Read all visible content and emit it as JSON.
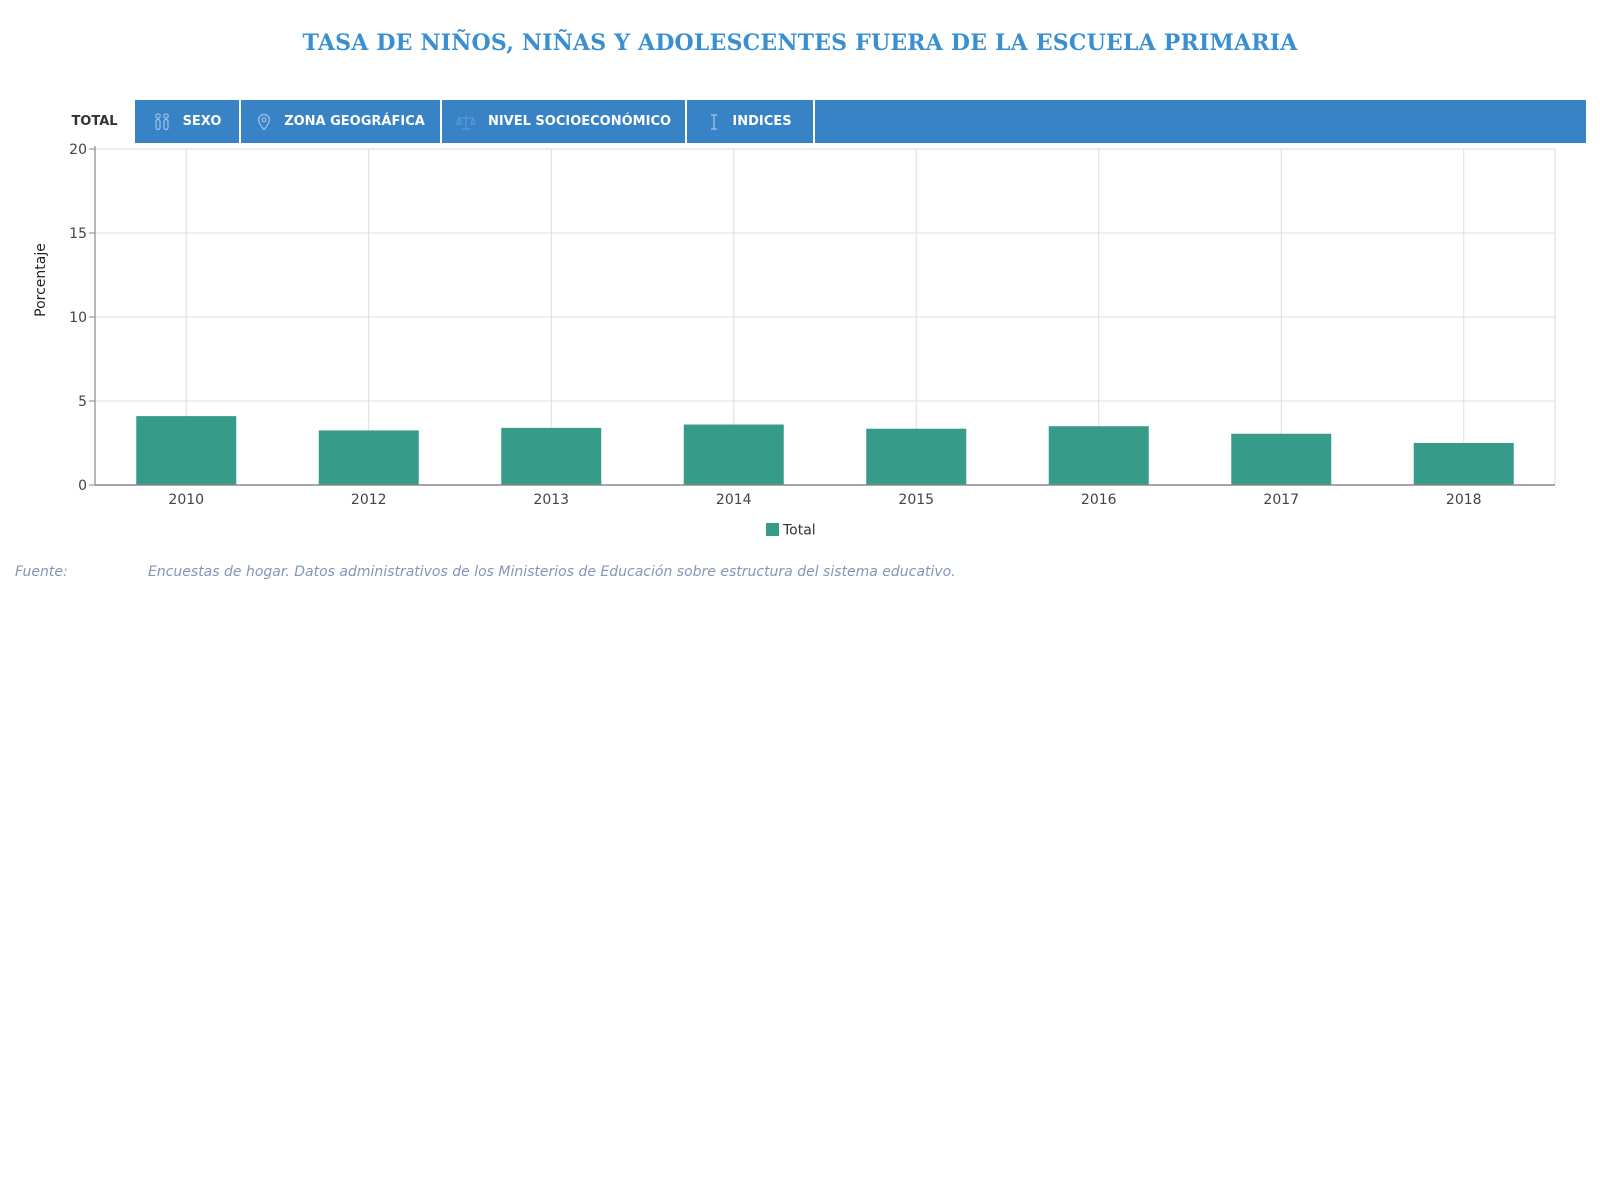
{
  "page": {
    "title": "TASA DE NIÑOS, NIÑAS Y ADOLESCENTES FUERA DE LA ESCUELA PRIMARIA"
  },
  "tabs": [
    {
      "label": "TOTAL",
      "icon": "none",
      "active": true
    },
    {
      "label": "SEXO",
      "icon": "gender-icon",
      "active": false
    },
    {
      "label": "ZONA GEOGRÁFICA",
      "icon": "map-pin-icon",
      "active": false
    },
    {
      "label": "NIVEL SOCIOECONÓMICO",
      "icon": "scale-icon",
      "active": false
    },
    {
      "label": "INDICES",
      "icon": "index-icon",
      "active": false
    }
  ],
  "source": {
    "label": "Fuente:",
    "text": "Encuestas de hogar. Datos administrativos de los Ministerios de Educación sobre estructura del sistema educativo."
  },
  "colors": {
    "title": "#3a8fd0",
    "tab_bar": "#3783c6",
    "bar": "#379b8a",
    "source_text": "#8694b8"
  },
  "chart_data": {
    "type": "bar",
    "categories": [
      "2010",
      "2012",
      "2013",
      "2014",
      "2015",
      "2016",
      "2017",
      "2018"
    ],
    "series": [
      {
        "name": "Total",
        "values": [
          4.1,
          3.25,
          3.4,
          3.6,
          3.35,
          3.5,
          3.05,
          2.5
        ]
      }
    ],
    "ylabel": "Porcentaje",
    "xlabel": "",
    "ylim": [
      0,
      20
    ],
    "yticks": [
      0,
      5,
      10,
      15,
      20
    ],
    "grid": true,
    "legend": {
      "position": "bottom-center",
      "items": [
        "Total"
      ]
    }
  }
}
